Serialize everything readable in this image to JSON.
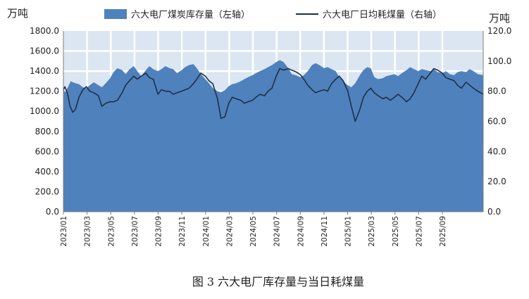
{
  "chart_data": {
    "type": "area",
    "caption": "图 3 六大电厂库存量与当日耗煤量",
    "left_unit": "万吨",
    "right_unit": "万吨",
    "left_axis": {
      "min": 0,
      "max": 1800,
      "step": 200,
      "tick_labels": [
        "0.0",
        "200.0",
        "400.0",
        "600.0",
        "800.0",
        "1000.0",
        "1200.0",
        "1400.0",
        "1600.0",
        "1800.0"
      ]
    },
    "right_axis": {
      "min": 0,
      "max": 120,
      "step": 20,
      "tick_labels": [
        "0.0",
        "20.0",
        "40.0",
        "60.0",
        "80.0",
        "100.0",
        "120.0"
      ]
    },
    "x_tick_labels": [
      "2023/01",
      "2023/03",
      "2023/05",
      "2023/07",
      "2023/09",
      "2023/11",
      "2024/01",
      "2024/03",
      "2024/05",
      "2024/07",
      "2024/09",
      "2024/11",
      "2025/01",
      "2025/03",
      "2025/05",
      "2025/07",
      "2025/09"
    ],
    "x_range": [
      "2023-01-01",
      "2025-12-15"
    ],
    "grid": true,
    "legend_position": "top",
    "series": [
      {
        "name": "六大电厂煤炭库存量（左轴）",
        "kind": "area",
        "axis": "left",
        "color": "#4F81BD",
        "points": [
          [
            "2023-01-01",
            1230
          ],
          [
            "2023-01-05",
            1190
          ],
          [
            "2023-01-10",
            1220
          ],
          [
            "2023-01-15",
            1260
          ],
          [
            "2023-01-20",
            1300
          ],
          [
            "2023-01-25",
            1290
          ],
          [
            "2023-02-01",
            1280
          ],
          [
            "2023-02-10",
            1270
          ],
          [
            "2023-02-20",
            1240
          ],
          [
            "2023-03-01",
            1230
          ],
          [
            "2023-03-10",
            1260
          ],
          [
            "2023-03-20",
            1290
          ],
          [
            "2023-04-01",
            1260
          ],
          [
            "2023-04-10",
            1240
          ],
          [
            "2023-04-20",
            1280
          ],
          [
            "2023-05-01",
            1330
          ],
          [
            "2023-05-10",
            1390
          ],
          [
            "2023-05-20",
            1430
          ],
          [
            "2023-06-01",
            1410
          ],
          [
            "2023-06-10",
            1370
          ],
          [
            "2023-06-20",
            1420
          ],
          [
            "2023-07-01",
            1450
          ],
          [
            "2023-07-10",
            1400
          ],
          [
            "2023-07-20",
            1350
          ],
          [
            "2023-08-01",
            1410
          ],
          [
            "2023-08-10",
            1450
          ],
          [
            "2023-08-20",
            1420
          ],
          [
            "2023-09-01",
            1400
          ],
          [
            "2023-09-10",
            1420
          ],
          [
            "2023-09-20",
            1450
          ],
          [
            "2023-10-01",
            1430
          ],
          [
            "2023-10-10",
            1420
          ],
          [
            "2023-10-20",
            1380
          ],
          [
            "2023-11-01",
            1410
          ],
          [
            "2023-11-10",
            1440
          ],
          [
            "2023-11-20",
            1460
          ],
          [
            "2023-12-01",
            1470
          ],
          [
            "2023-12-10",
            1430
          ],
          [
            "2023-12-20",
            1370
          ],
          [
            "2024-01-01",
            1320
          ],
          [
            "2024-01-10",
            1280
          ],
          [
            "2024-01-20",
            1230
          ],
          [
            "2024-02-01",
            1200
          ],
          [
            "2024-02-10",
            1190
          ],
          [
            "2024-02-20",
            1210
          ],
          [
            "2024-03-01",
            1250
          ],
          [
            "2024-03-10",
            1270
          ],
          [
            "2024-03-20",
            1280
          ],
          [
            "2024-04-01",
            1300
          ],
          [
            "2024-04-10",
            1320
          ],
          [
            "2024-04-20",
            1340
          ],
          [
            "2024-05-01",
            1360
          ],
          [
            "2024-05-10",
            1380
          ],
          [
            "2024-05-20",
            1400
          ],
          [
            "2024-06-01",
            1420
          ],
          [
            "2024-06-10",
            1440
          ],
          [
            "2024-06-20",
            1460
          ],
          [
            "2024-07-01",
            1490
          ],
          [
            "2024-07-10",
            1510
          ],
          [
            "2024-07-20",
            1490
          ],
          [
            "2024-08-01",
            1430
          ],
          [
            "2024-08-10",
            1370
          ],
          [
            "2024-08-20",
            1360
          ],
          [
            "2024-09-01",
            1340
          ],
          [
            "2024-09-10",
            1360
          ],
          [
            "2024-09-20",
            1400
          ],
          [
            "2024-10-01",
            1460
          ],
          [
            "2024-10-10",
            1480
          ],
          [
            "2024-10-20",
            1460
          ],
          [
            "2024-11-01",
            1430
          ],
          [
            "2024-11-10",
            1440
          ],
          [
            "2024-11-20",
            1420
          ],
          [
            "2024-12-01",
            1400
          ],
          [
            "2024-12-10",
            1340
          ],
          [
            "2024-12-20",
            1300
          ],
          [
            "2025-01-01",
            1260
          ],
          [
            "2025-01-10",
            1240
          ],
          [
            "2025-01-20",
            1280
          ],
          [
            "2025-02-01",
            1360
          ],
          [
            "2025-02-10",
            1410
          ],
          [
            "2025-02-20",
            1440
          ],
          [
            "2025-03-01",
            1430
          ],
          [
            "2025-03-10",
            1340
          ],
          [
            "2025-03-20",
            1320
          ],
          [
            "2025-04-01",
            1330
          ],
          [
            "2025-04-10",
            1350
          ],
          [
            "2025-04-20",
            1360
          ],
          [
            "2025-05-01",
            1370
          ],
          [
            "2025-05-10",
            1350
          ],
          [
            "2025-05-20",
            1380
          ],
          [
            "2025-06-01",
            1410
          ],
          [
            "2025-06-10",
            1440
          ],
          [
            "2025-06-20",
            1420
          ],
          [
            "2025-07-01",
            1400
          ],
          [
            "2025-07-10",
            1420
          ],
          [
            "2025-07-20",
            1410
          ],
          [
            "2025-08-01",
            1400
          ],
          [
            "2025-08-10",
            1420
          ],
          [
            "2025-08-20",
            1390
          ],
          [
            "2025-09-01",
            1380
          ],
          [
            "2025-09-10",
            1400
          ],
          [
            "2025-09-20",
            1370
          ],
          [
            "2025-10-01",
            1360
          ],
          [
            "2025-10-10",
            1390
          ],
          [
            "2025-10-20",
            1400
          ],
          [
            "2025-11-01",
            1390
          ],
          [
            "2025-11-10",
            1420
          ],
          [
            "2025-11-20",
            1400
          ],
          [
            "2025-12-01",
            1370
          ],
          [
            "2025-12-15",
            1360
          ]
        ]
      },
      {
        "name": "六大电厂日均耗煤量（右轴）",
        "kind": "line",
        "axis": "right",
        "color": "#1F3046",
        "points": [
          [
            "2023-01-01",
            81
          ],
          [
            "2023-01-05",
            83
          ],
          [
            "2023-01-12",
            78
          ],
          [
            "2023-01-18",
            70
          ],
          [
            "2023-01-25",
            66
          ],
          [
            "2023-02-01",
            68
          ],
          [
            "2023-02-10",
            76
          ],
          [
            "2023-02-20",
            81
          ],
          [
            "2023-03-01",
            83
          ],
          [
            "2023-03-10",
            80
          ],
          [
            "2023-03-20",
            79
          ],
          [
            "2023-04-01",
            77
          ],
          [
            "2023-04-10",
            70
          ],
          [
            "2023-04-20",
            72
          ],
          [
            "2023-05-01",
            73
          ],
          [
            "2023-05-10",
            73
          ],
          [
            "2023-05-20",
            74
          ],
          [
            "2023-06-01",
            79
          ],
          [
            "2023-06-10",
            84
          ],
          [
            "2023-06-20",
            87
          ],
          [
            "2023-07-01",
            90
          ],
          [
            "2023-07-10",
            88
          ],
          [
            "2023-07-20",
            90
          ],
          [
            "2023-08-01",
            92
          ],
          [
            "2023-08-10",
            89
          ],
          [
            "2023-08-20",
            88
          ],
          [
            "2023-09-01",
            78
          ],
          [
            "2023-09-10",
            81
          ],
          [
            "2023-09-20",
            80
          ],
          [
            "2023-10-01",
            80
          ],
          [
            "2023-10-10",
            78
          ],
          [
            "2023-10-20",
            79
          ],
          [
            "2023-11-01",
            80
          ],
          [
            "2023-11-10",
            81
          ],
          [
            "2023-11-20",
            82
          ],
          [
            "2023-12-01",
            85
          ],
          [
            "2023-12-10",
            88
          ],
          [
            "2023-12-20",
            92
          ],
          [
            "2024-01-01",
            90
          ],
          [
            "2024-01-10",
            87
          ],
          [
            "2024-01-20",
            85
          ],
          [
            "2024-02-01",
            75
          ],
          [
            "2024-02-10",
            62
          ],
          [
            "2024-02-20",
            63
          ],
          [
            "2024-03-01",
            72
          ],
          [
            "2024-03-10",
            76
          ],
          [
            "2024-03-20",
            75
          ],
          [
            "2024-04-01",
            74
          ],
          [
            "2024-04-10",
            72
          ],
          [
            "2024-04-20",
            73
          ],
          [
            "2024-05-01",
            74
          ],
          [
            "2024-05-10",
            76
          ],
          [
            "2024-05-20",
            78
          ],
          [
            "2024-06-01",
            77
          ],
          [
            "2024-06-10",
            80
          ],
          [
            "2024-06-20",
            82
          ],
          [
            "2024-07-01",
            90
          ],
          [
            "2024-07-10",
            95
          ],
          [
            "2024-07-20",
            94
          ],
          [
            "2024-08-01",
            95
          ],
          [
            "2024-08-10",
            94
          ],
          [
            "2024-08-20",
            93
          ],
          [
            "2024-09-01",
            91
          ],
          [
            "2024-09-10",
            88
          ],
          [
            "2024-09-20",
            84
          ],
          [
            "2024-10-01",
            81
          ],
          [
            "2024-10-10",
            79
          ],
          [
            "2024-10-20",
            80
          ],
          [
            "2024-11-01",
            81
          ],
          [
            "2024-11-10",
            80
          ],
          [
            "2024-11-20",
            85
          ],
          [
            "2024-12-01",
            88
          ],
          [
            "2024-12-10",
            90
          ],
          [
            "2024-12-20",
            87
          ],
          [
            "2025-01-01",
            80
          ],
          [
            "2025-01-10",
            70
          ],
          [
            "2025-01-20",
            60
          ],
          [
            "2025-02-01",
            68
          ],
          [
            "2025-02-10",
            76
          ],
          [
            "2025-02-20",
            80
          ],
          [
            "2025-03-01",
            82
          ],
          [
            "2025-03-10",
            79
          ],
          [
            "2025-03-20",
            77
          ],
          [
            "2025-04-01",
            75
          ],
          [
            "2025-04-10",
            76
          ],
          [
            "2025-04-20",
            74
          ],
          [
            "2025-05-01",
            76
          ],
          [
            "2025-05-10",
            78
          ],
          [
            "2025-05-20",
            76
          ],
          [
            "2025-06-01",
            73
          ],
          [
            "2025-06-10",
            75
          ],
          [
            "2025-06-20",
            79
          ],
          [
            "2025-07-01",
            85
          ],
          [
            "2025-07-10",
            90
          ],
          [
            "2025-07-20",
            88
          ],
          [
            "2025-08-01",
            92
          ],
          [
            "2025-08-10",
            95
          ],
          [
            "2025-08-20",
            94
          ],
          [
            "2025-09-01",
            92
          ],
          [
            "2025-09-10",
            89
          ],
          [
            "2025-09-20",
            88
          ],
          [
            "2025-10-01",
            87
          ],
          [
            "2025-10-10",
            84
          ],
          [
            "2025-10-20",
            82
          ],
          [
            "2025-11-01",
            86
          ],
          [
            "2025-11-10",
            84
          ],
          [
            "2025-11-20",
            82
          ],
          [
            "2025-12-01",
            80
          ],
          [
            "2025-12-15",
            78
          ]
        ]
      }
    ]
  }
}
